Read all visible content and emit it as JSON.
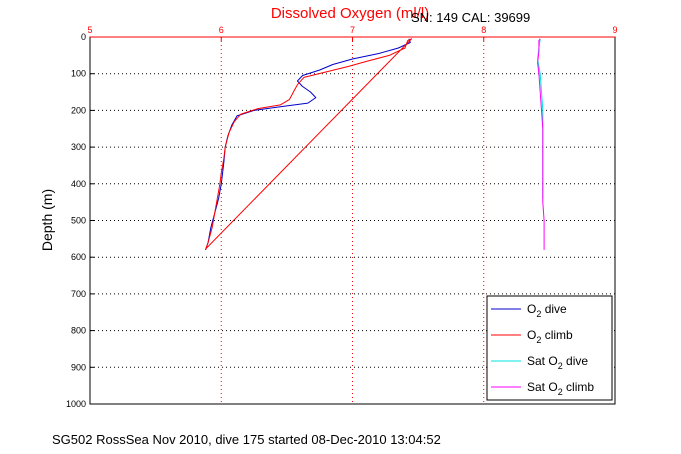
{
  "chart_data": {
    "type": "line",
    "title": "Dissolved Oxygen (ml/l)",
    "serial_label": "SN: 149  CAL: 39699",
    "ylabel": "Depth (m)",
    "xlabel": "",
    "caption": "SG502 RossSea Nov 2010, dive 175 started 08-Dec-2010 13:04:52",
    "xlim": [
      5,
      9
    ],
    "ylim": [
      0,
      1000
    ],
    "y_reversed": true,
    "x_axis_position": "top",
    "x_ticks": [
      "5",
      "6",
      "7",
      "8",
      "9"
    ],
    "y_ticks": [
      "0",
      "100",
      "200",
      "300",
      "400",
      "500",
      "600",
      "700",
      "800",
      "900",
      "1000"
    ],
    "grid": true,
    "legend_position": "bottom-right",
    "series": [
      {
        "name": "O2 dive",
        "legend_main": "O",
        "legend_sub": "2",
        "legend_rest": " dive",
        "color": "#0000cc",
        "points": [
          [
            7.43,
            5
          ],
          [
            7.44,
            15
          ],
          [
            7.35,
            30
          ],
          [
            7.2,
            45
          ],
          [
            7.0,
            60
          ],
          [
            6.85,
            75
          ],
          [
            6.75,
            90
          ],
          [
            6.62,
            105
          ],
          [
            6.58,
            120
          ],
          [
            6.62,
            135
          ],
          [
            6.68,
            150
          ],
          [
            6.72,
            165
          ],
          [
            6.66,
            180
          ],
          [
            6.45,
            190
          ],
          [
            6.25,
            200
          ],
          [
            6.12,
            215
          ],
          [
            6.08,
            240
          ],
          [
            6.05,
            270
          ],
          [
            6.03,
            300
          ],
          [
            6.02,
            340
          ],
          [
            6.01,
            370
          ],
          [
            6.0,
            400
          ],
          [
            5.98,
            440
          ],
          [
            5.95,
            480
          ],
          [
            5.92,
            520
          ],
          [
            5.9,
            560
          ],
          [
            5.88,
            580
          ]
        ]
      },
      {
        "name": "O2 climb",
        "legend_main": "O",
        "legend_sub": "2",
        "legend_rest": " climb",
        "color": "#ff0000",
        "points": [
          [
            5.88,
            580
          ],
          [
            5.9,
            560
          ],
          [
            5.93,
            520
          ],
          [
            5.95,
            480
          ],
          [
            5.97,
            440
          ],
          [
            5.99,
            400
          ],
          [
            6.0,
            370
          ],
          [
            6.02,
            330
          ],
          [
            6.03,
            300
          ],
          [
            6.06,
            260
          ],
          [
            6.1,
            230
          ],
          [
            6.15,
            210
          ],
          [
            6.28,
            195
          ],
          [
            6.45,
            185
          ],
          [
            6.52,
            170
          ],
          [
            6.55,
            150
          ],
          [
            6.58,
            130
          ],
          [
            6.63,
            110
          ],
          [
            6.8,
            95
          ],
          [
            6.97,
            80
          ],
          [
            7.12,
            65
          ],
          [
            7.28,
            50
          ],
          [
            7.4,
            30
          ],
          [
            7.42,
            10
          ],
          [
            7.45,
            5
          ],
          [
            5.88,
            578
          ]
        ]
      },
      {
        "name": "Sat O2 dive",
        "legend_main": "Sat O",
        "legend_sub": "2",
        "legend_rest": " dive",
        "color": "#00e5e5",
        "points": [
          [
            8.43,
            5
          ],
          [
            8.42,
            30
          ],
          [
            8.41,
            60
          ],
          [
            8.43,
            100
          ],
          [
            8.44,
            150
          ],
          [
            8.45,
            200
          ],
          [
            8.45,
            250
          ],
          [
            8.45,
            300
          ],
          [
            8.45,
            350
          ],
          [
            8.45,
            400
          ],
          [
            8.45,
            440
          ]
        ]
      },
      {
        "name": "Sat O2 climb",
        "legend_main": "Sat O",
        "legend_sub": "2",
        "legend_rest": " climb",
        "color": "#ff00ff",
        "points": [
          [
            8.46,
            580
          ],
          [
            8.46,
            540
          ],
          [
            8.46,
            500
          ],
          [
            8.45,
            450
          ],
          [
            8.45,
            400
          ],
          [
            8.45,
            350
          ],
          [
            8.45,
            300
          ],
          [
            8.45,
            250
          ],
          [
            8.44,
            200
          ],
          [
            8.43,
            150
          ],
          [
            8.42,
            100
          ],
          [
            8.41,
            70
          ],
          [
            8.42,
            40
          ],
          [
            8.42,
            10
          ],
          [
            8.43,
            5
          ]
        ]
      }
    ]
  }
}
